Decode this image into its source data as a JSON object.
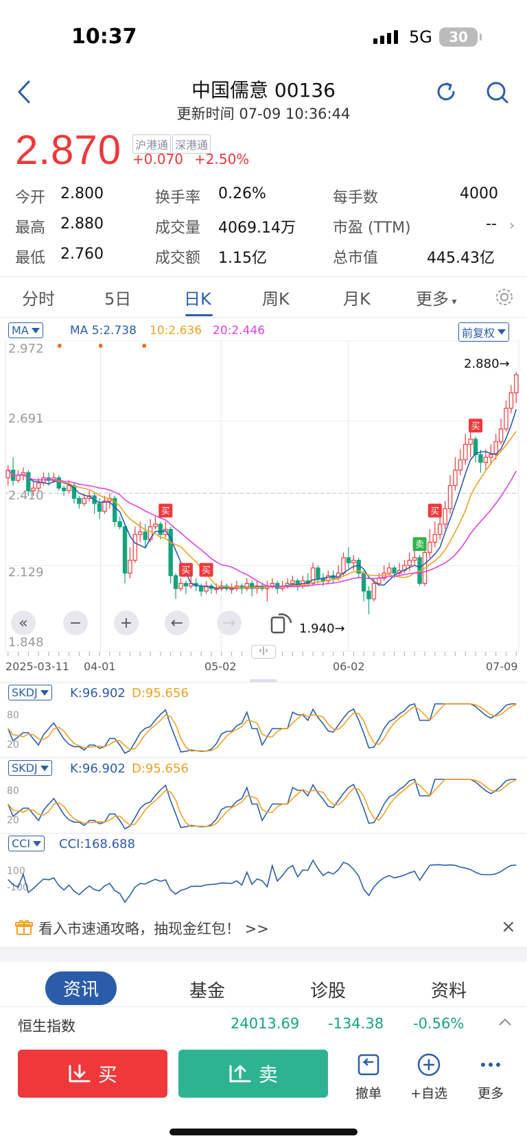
{
  "status_bar": {
    "time": "10:37",
    "network": "5G",
    "battery": "30"
  },
  "header": {
    "title": "中国儒意 00136",
    "update_time": "更新时间 07-09 10:36:44"
  },
  "quote": {
    "price": "2.870",
    "tags": [
      "沪港通",
      "深港通"
    ],
    "change": "+0.070",
    "change_pct": "+2.50%"
  },
  "stats": {
    "open_label": "今开",
    "open": "2.800",
    "high_label": "最高",
    "high": "2.880",
    "low_label": "最低",
    "low": "2.760",
    "turnover_rate_label": "换手率",
    "turnover_rate": "0.26%",
    "volume_label": "成交量",
    "volume": "4069.14万",
    "amount_label": "成交额",
    "amount": "1.15亿",
    "lot_label": "每手数",
    "lot": "4000",
    "pe_label": "市盈 (TTM)",
    "pe": "--",
    "mktcap_label": "总市值",
    "mktcap": "445.43亿"
  },
  "chart_tabs": [
    "分时",
    "5日",
    "日K",
    "周K",
    "月K",
    "更多"
  ],
  "ma_bar": {
    "selector": "MA",
    "ma5": "MA 5:2.738",
    "ma10": "10:2.636",
    "ma20": "20:2.446",
    "adjust": "前复权"
  },
  "chart_data": {
    "type": "candlestick",
    "y_ticks": [
      "2.972",
      "2.691",
      "2.410",
      "2.129",
      "1.848"
    ],
    "ylim": [
      1.848,
      2.972
    ],
    "x_ticks": [
      "2025-03-11",
      "04-01",
      "05-02",
      "06-02",
      "07-09"
    ],
    "annotations": {
      "max": "2.880→",
      "min": "1.940→"
    },
    "signals": [
      {
        "type": "买",
        "x": 31
      },
      {
        "type": "买",
        "x": 35
      },
      {
        "type": "买",
        "x": 39
      },
      {
        "type": "卖",
        "x": 81
      },
      {
        "type": "买",
        "x": 84
      },
      {
        "type": "买",
        "x": 92
      }
    ],
    "candles": [
      [
        2.47,
        2.5,
        2.52,
        2.44
      ],
      [
        2.5,
        2.46,
        2.55,
        2.44
      ],
      [
        2.46,
        2.48,
        2.5,
        2.45
      ],
      [
        2.48,
        2.49,
        2.51,
        2.46
      ],
      [
        2.49,
        2.42,
        2.5,
        2.4
      ],
      [
        2.42,
        2.43,
        2.46,
        2.4
      ],
      [
        2.43,
        2.45,
        2.47,
        2.42
      ],
      [
        2.45,
        2.47,
        2.49,
        2.44
      ],
      [
        2.47,
        2.46,
        2.49,
        2.44
      ],
      [
        2.46,
        2.47,
        2.49,
        2.45
      ],
      [
        2.47,
        2.43,
        2.48,
        2.42
      ],
      [
        2.43,
        2.42,
        2.44,
        2.4
      ],
      [
        2.42,
        2.44,
        2.46,
        2.41
      ],
      [
        2.44,
        2.39,
        2.45,
        2.37
      ],
      [
        2.39,
        2.37,
        2.4,
        2.35
      ],
      [
        2.37,
        2.39,
        2.41,
        2.36
      ],
      [
        2.39,
        2.4,
        2.42,
        2.38
      ],
      [
        2.4,
        2.37,
        2.41,
        2.33
      ],
      [
        2.37,
        2.34,
        2.39,
        2.31
      ],
      [
        2.34,
        2.38,
        2.4,
        2.33
      ],
      [
        2.38,
        2.39,
        2.41,
        2.35
      ],
      [
        2.39,
        2.3,
        2.4,
        2.28
      ],
      [
        2.3,
        2.28,
        2.32,
        2.27
      ],
      [
        2.28,
        2.1,
        2.29,
        2.06
      ],
      [
        2.1,
        2.15,
        2.2,
        2.08
      ],
      [
        2.15,
        2.25,
        2.28,
        2.14
      ],
      [
        2.25,
        2.26,
        2.3,
        2.22
      ],
      [
        2.26,
        2.23,
        2.29,
        2.2
      ],
      [
        2.23,
        2.28,
        2.31,
        2.22
      ],
      [
        2.28,
        2.29,
        2.32,
        2.27
      ],
      [
        2.29,
        2.25,
        2.3,
        2.23
      ],
      [
        2.25,
        2.27,
        2.3,
        2.24
      ],
      [
        2.27,
        2.09,
        2.28,
        2.06
      ],
      [
        2.09,
        2.04,
        2.1,
        2.0
      ],
      [
        2.04,
        2.06,
        2.08,
        2.03
      ],
      [
        2.06,
        2.05,
        2.07,
        2.02
      ],
      [
        2.05,
        2.06,
        2.09,
        2.04
      ],
      [
        2.06,
        2.05,
        2.08,
        2.03
      ],
      [
        2.05,
        2.03,
        2.06,
        2.01
      ],
      [
        2.03,
        2.05,
        2.07,
        2.02
      ],
      [
        2.05,
        2.04,
        2.06,
        2.02
      ],
      [
        2.04,
        2.04,
        2.06,
        2.02
      ],
      [
        2.04,
        2.05,
        2.07,
        2.03
      ],
      [
        2.05,
        2.04,
        2.06,
        2.03
      ],
      [
        2.04,
        2.04,
        2.06,
        2.02
      ],
      [
        2.04,
        2.05,
        2.07,
        2.03
      ],
      [
        2.05,
        2.04,
        2.06,
        2.02
      ],
      [
        2.04,
        2.06,
        2.08,
        2.03
      ],
      [
        2.06,
        2.04,
        2.07,
        2.01
      ],
      [
        2.04,
        2.05,
        2.07,
        2.02
      ],
      [
        2.05,
        2.04,
        2.06,
        2.03
      ],
      [
        2.04,
        2.05,
        2.07,
        1.99
      ],
      [
        2.05,
        2.06,
        2.08,
        2.04
      ],
      [
        2.06,
        2.04,
        2.07,
        2.02
      ],
      [
        2.04,
        2.05,
        2.07,
        2.03
      ],
      [
        2.05,
        2.06,
        2.08,
        2.04
      ],
      [
        2.06,
        2.07,
        2.09,
        2.05
      ],
      [
        2.07,
        2.05,
        2.08,
        2.03
      ],
      [
        2.05,
        2.07,
        2.09,
        2.04
      ],
      [
        2.07,
        2.06,
        2.1,
        2.05
      ],
      [
        2.06,
        2.12,
        2.14,
        2.05
      ],
      [
        2.12,
        2.08,
        2.13,
        2.06
      ],
      [
        2.08,
        2.07,
        2.1,
        2.05
      ],
      [
        2.07,
        2.09,
        2.11,
        2.06
      ],
      [
        2.09,
        2.08,
        2.11,
        2.06
      ],
      [
        2.08,
        2.1,
        2.13,
        2.07
      ],
      [
        2.1,
        2.16,
        2.18,
        2.09
      ],
      [
        2.16,
        2.14,
        2.2,
        2.12
      ],
      [
        2.14,
        2.15,
        2.17,
        2.11
      ],
      [
        2.15,
        2.1,
        2.16,
        2.08
      ],
      [
        2.1,
        2.03,
        2.11,
        1.99
      ],
      [
        2.03,
        2.0,
        2.05,
        1.94
      ],
      [
        2.0,
        2.06,
        2.08,
        1.99
      ],
      [
        2.06,
        2.08,
        2.1,
        2.05
      ],
      [
        2.08,
        2.1,
        2.13,
        2.07
      ],
      [
        2.1,
        2.12,
        2.14,
        2.09
      ],
      [
        2.12,
        2.1,
        2.13,
        2.08
      ],
      [
        2.1,
        2.11,
        2.14,
        2.09
      ],
      [
        2.11,
        2.13,
        2.15,
        2.1
      ],
      [
        2.13,
        2.15,
        2.18,
        2.11
      ],
      [
        2.15,
        2.16,
        2.19,
        2.13
      ],
      [
        2.16,
        2.06,
        2.17,
        2.05
      ],
      [
        2.06,
        2.18,
        2.2,
        2.05
      ],
      [
        2.18,
        2.22,
        2.27,
        2.16
      ],
      [
        2.22,
        2.25,
        2.3,
        2.2
      ],
      [
        2.25,
        2.29,
        2.34,
        2.23
      ],
      [
        2.29,
        2.35,
        2.38,
        2.27
      ],
      [
        2.35,
        2.44,
        2.48,
        2.33
      ],
      [
        2.44,
        2.5,
        2.55,
        2.42
      ],
      [
        2.5,
        2.54,
        2.58,
        2.48
      ],
      [
        2.54,
        2.6,
        2.64,
        2.52
      ],
      [
        2.6,
        2.62,
        2.66,
        2.55
      ],
      [
        2.62,
        2.56,
        2.63,
        2.53
      ],
      [
        2.56,
        2.53,
        2.58,
        2.49
      ],
      [
        2.53,
        2.55,
        2.58,
        2.5
      ],
      [
        2.55,
        2.56,
        2.6,
        2.52
      ],
      [
        2.56,
        2.61,
        2.64,
        2.54
      ],
      [
        2.61,
        2.66,
        2.7,
        2.6
      ],
      [
        2.66,
        2.74,
        2.77,
        2.65
      ],
      [
        2.74,
        2.8,
        2.83,
        2.72
      ],
      [
        2.8,
        2.87,
        2.88,
        2.76
      ]
    ]
  },
  "controls": [
    "«",
    "−",
    "+",
    "←",
    "→"
  ],
  "indicators": [
    {
      "name": "SKDJ",
      "k": "K:96.902",
      "d": "D:95.656",
      "levels": [
        "80",
        "20"
      ]
    },
    {
      "name": "SKDJ",
      "k": "K:96.902",
      "d": "D:95.656",
      "levels": [
        "80",
        "20"
      ]
    },
    {
      "name": "CCI",
      "k": "CCI:168.688",
      "levels": [
        "100",
        "-100"
      ]
    }
  ],
  "banner": {
    "text": "看入市速通攻略，抽现金红包！ >>"
  },
  "bottom_tabs": [
    "资讯",
    "基金",
    "诊股",
    "资料"
  ],
  "index": {
    "name": "恒生指数",
    "value": "24013.69",
    "change": "-134.38",
    "pct": "-0.56%"
  },
  "actions": {
    "buy": "买",
    "sell": "卖",
    "cancel": "撤单",
    "watch": "+自选",
    "more": "更多"
  },
  "colors": {
    "up": "#f0373a",
    "down": "#14a37f",
    "accent": "#2a5caa",
    "ma5": "#2a5caa",
    "ma10": "#f0a020",
    "ma20": "#e040e0"
  }
}
